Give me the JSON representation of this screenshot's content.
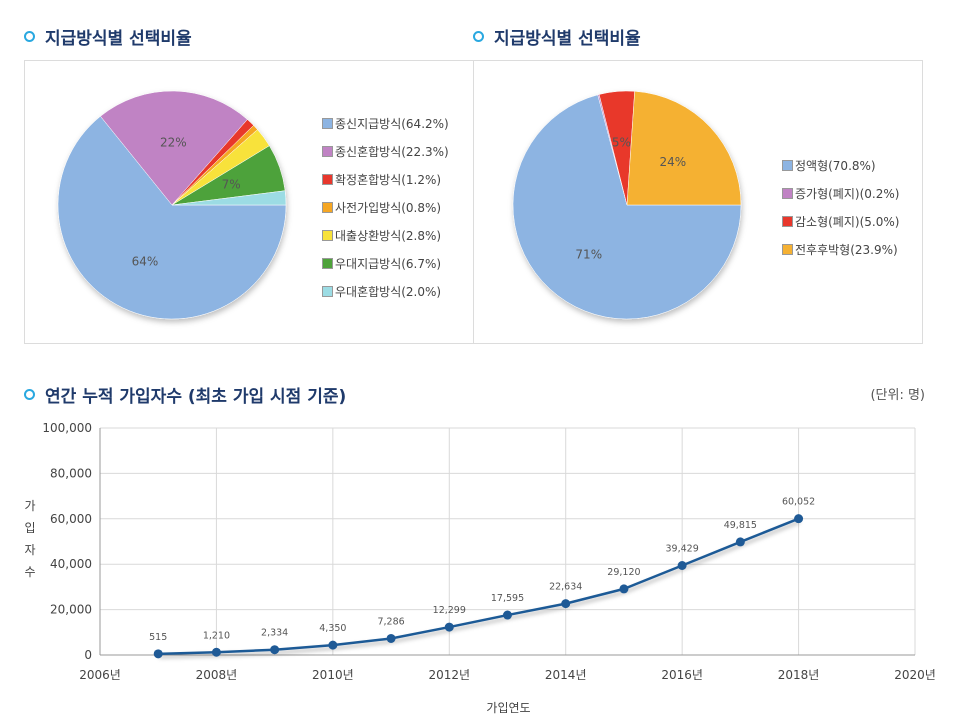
{
  "charts": {
    "pie1": {
      "title": "지급방식별 선택비율",
      "chart_data": {
        "type": "pie",
        "title": "지급방식별 선택비율",
        "slices": [
          {
            "name": "종신지급방식(64.2%)",
            "value": 64.2,
            "label": "64%",
            "color": "#8db4e2"
          },
          {
            "name": "종신혼합방식(22.3%)",
            "value": 22.3,
            "label": "22%",
            "color": "#c083c4"
          },
          {
            "name": "확정혼합방식(1.2%)",
            "value": 1.2,
            "label": "",
            "color": "#e8372c"
          },
          {
            "name": "사전가입방식(0.8%)",
            "value": 0.8,
            "label": "",
            "color": "#f5a623"
          },
          {
            "name": "대출상환방식(2.8%)",
            "value": 2.8,
            "label": "",
            "color": "#f8e23b"
          },
          {
            "name": "우대지급방식(6.7%)",
            "value": 6.7,
            "label": "7%",
            "color": "#4ea23a"
          },
          {
            "name": "우대혼합방식(2.0%)",
            "value": 2.0,
            "label": "",
            "color": "#9cdce4"
          }
        ],
        "legend": "right"
      }
    },
    "pie2": {
      "title": "지급방식별 선택비율",
      "chart_data": {
        "type": "pie",
        "title": "지급방식별 선택비율",
        "slices": [
          {
            "name": "정액형(70.8%)",
            "value": 70.8,
            "label": "71%",
            "color": "#8db4e2"
          },
          {
            "name": "증가형(폐지)(0.2%)",
            "value": 0.2,
            "label": "",
            "color": "#c083c4"
          },
          {
            "name": "감소형(폐지)(5.0%)",
            "value": 5.0,
            "label": "5%",
            "color": "#e8372c"
          },
          {
            "name": "전후후박형(23.9%)",
            "value": 23.9,
            "label": "24%",
            "color": "#f5b133"
          }
        ],
        "legend": "right"
      }
    },
    "line": {
      "title": "연간 누적 가입자수 (최초 가입 시점 기준)",
      "unit_note": "(단위: 명)",
      "chart_data": {
        "type": "line",
        "title": "연간 누적 가입자수 (최초 가입 시점 기준)",
        "xlabel": "가입연도",
        "ylabel": "가입자수",
        "x": [
          2007,
          2008,
          2009,
          2010,
          2011,
          2012,
          2013,
          2014,
          2015,
          2016,
          2017,
          2018
        ],
        "values": [
          515,
          1210,
          2334,
          4350,
          7286,
          12299,
          17595,
          22634,
          29120,
          39429,
          49815,
          60052
        ],
        "data_labels": [
          "515",
          "1,210",
          "2,334",
          "4,350",
          "7,286",
          "12,299",
          "17,595",
          "22,634",
          "29,120",
          "39,429",
          "49,815",
          "60,052"
        ],
        "xlim": [
          2006,
          2020
        ],
        "ylim": [
          0,
          100000
        ],
        "x_ticks": [
          {
            "value": 2006,
            "label": "2006년"
          },
          {
            "value": 2008,
            "label": "2008년"
          },
          {
            "value": 2010,
            "label": "2010년"
          },
          {
            "value": 2012,
            "label": "2012년"
          },
          {
            "value": 2014,
            "label": "2014년"
          },
          {
            "value": 2016,
            "label": "2016년"
          },
          {
            "value": 2018,
            "label": "2018년"
          },
          {
            "value": 2020,
            "label": "2020년"
          }
        ],
        "y_ticks": [
          {
            "value": 0,
            "label": "0"
          },
          {
            "value": 20000,
            "label": "20,000"
          },
          {
            "value": 40000,
            "label": "40,000"
          },
          {
            "value": 60000,
            "label": "60,000"
          },
          {
            "value": 80000,
            "label": "80,000"
          },
          {
            "value": 100000,
            "label": "100,000"
          }
        ],
        "grid": true,
        "line_color": "#1f5a96"
      }
    }
  }
}
